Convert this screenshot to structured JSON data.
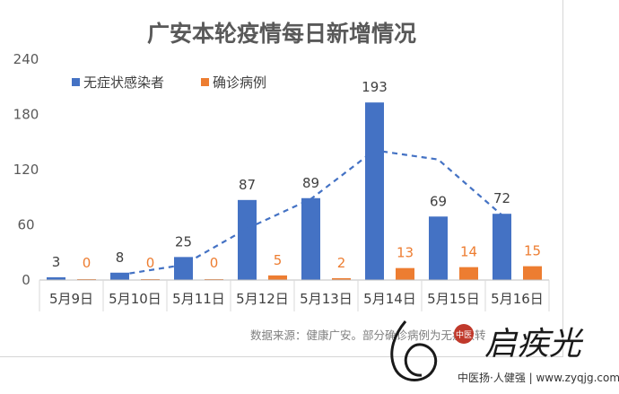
{
  "chart_data": {
    "type": "bar",
    "title": "广安本轮疫情每日新增情况",
    "categories": [
      "5月9日",
      "5月10日",
      "5月11日",
      "5月12日",
      "5月13日",
      "5月14日",
      "5月15日",
      "5月16日"
    ],
    "series": [
      {
        "name": "无症状感染者",
        "values": [
          3,
          8,
          25,
          87,
          89,
          193,
          69,
          72
        ],
        "color": "#4472c4"
      },
      {
        "name": "确诊病例",
        "values": [
          0,
          0,
          0,
          5,
          2,
          13,
          14,
          15
        ],
        "color": "#ed7d31"
      }
    ],
    "trendline": {
      "type": "moving-average",
      "of": "无症状感染者",
      "style": "dashed",
      "color": "#4472c4"
    },
    "yticks": [
      "0",
      "60",
      "120",
      "180",
      "240"
    ],
    "ylim": [
      0,
      240
    ],
    "grid": false,
    "legend": "top-left",
    "annotation": "数据来源：健康广安。部分确诊病例为无症状转"
  },
  "watermark": {
    "brand": "启疾光",
    "url": "中医扬·人健强 | www.zyqjg.com",
    "seal": "中医"
  }
}
